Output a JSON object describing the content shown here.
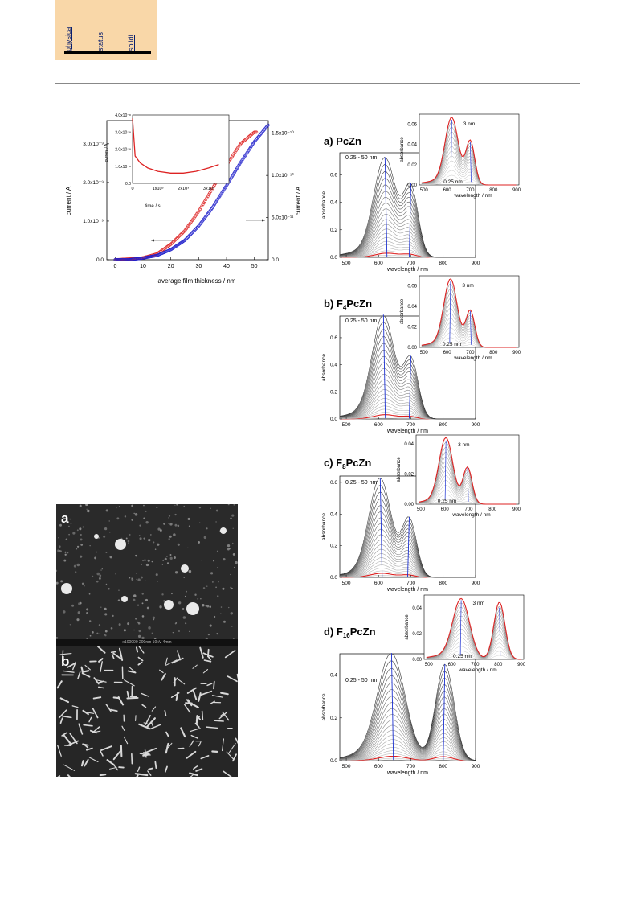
{
  "header": {
    "journal_words": [
      "physica",
      "status",
      "solidi"
    ]
  },
  "figure_left": {
    "x_label": "average film thickness / nm",
    "y_left_label": "current / A",
    "y_right_label": "current / A",
    "y_left_ticks": [
      "0.0",
      "1.0x10⁻⁹",
      "2.0x10⁻⁹",
      "3.0x10⁻⁹"
    ],
    "y_right_ticks": [
      "0.0",
      "5.0x10⁻¹¹",
      "1.0x10⁻¹⁰",
      "1.5x10⁻¹⁰"
    ],
    "x_ticks": [
      "0",
      "10",
      "20",
      "30",
      "40",
      "50"
    ],
    "inset": {
      "x_label": "time / s",
      "y_label": "current / A",
      "x_ticks": [
        "0",
        "1x10³",
        "2x10³",
        "3x10³"
      ],
      "y_ticks": [
        "0.0",
        "1.0x10⁻⁸",
        "2.0x10⁻⁸",
        "3.0x10⁻⁸",
        "4.0x10⁻⁸"
      ]
    }
  },
  "sem": {
    "label_a": "a",
    "label_b": "b",
    "scalebar_text": "x100000   200nm   10kV   4mm"
  },
  "panels": [
    {
      "label_prefix": "a) ",
      "label_core": "PcZn",
      "label_sub": "",
      "range_text": "0.25 - 50 nm",
      "inset_small": "0.25 nm",
      "inset_big": "3 nm"
    },
    {
      "label_prefix": "b) F",
      "label_core": "PcZn",
      "label_sub": "4",
      "range_text": "0.25 - 50 nm",
      "inset_small": "0.25 nm",
      "inset_big": "3 nm"
    },
    {
      "label_prefix": "c) F",
      "label_core": "PcZn",
      "label_sub": "8",
      "range_text": "0.25 - 50 nm",
      "inset_small": "0.25 nm",
      "inset_big": "3 nm"
    },
    {
      "label_prefix": "d) F",
      "label_core": "PcZn",
      "label_sub": "16",
      "range_text": "0.25 - 50 nm",
      "inset_small": "0.25 nm",
      "inset_big": "3 nm"
    }
  ],
  "spectra_axes": {
    "x_label": "wavelength / nm",
    "y_label": "absorbance"
  },
  "chart_data": [
    {
      "type": "scatter",
      "xlabel": "average film thickness / nm",
      "ylabel": "current / A",
      "xlim": [
        -3,
        55
      ],
      "series": [
        {
          "color": "#dd2222",
          "x": [
            0,
            5,
            10,
            15,
            20,
            25,
            30,
            35,
            40,
            45,
            50
          ],
          "values": [
            0,
            2e-11,
            5e-11,
            1.5e-10,
            4e-10,
            7.5e-10,
            1.25e-09,
            1.85e-09,
            2.45e-09,
            3e-09,
            3.3e-09
          ]
        },
        {
          "color": "#2222cc",
          "x": [
            0,
            5,
            10,
            15,
            20,
            25,
            30,
            35,
            40,
            45,
            50,
            55
          ],
          "values": [
            0,
            0,
            2e-12,
            5e-12,
            1.2e-11,
            2.3e-11,
            4e-11,
            6.2e-11,
            8.8e-11,
            1.15e-10,
            1.4e-10,
            1.6e-10
          ]
        }
      ]
    },
    {
      "type": "line",
      "title": "",
      "xlabel": "time / s",
      "ylabel": "current / A",
      "x": [
        0,
        100,
        300,
        600,
        1000,
        1500,
        2000,
        2500,
        3000,
        3400
      ],
      "values": [
        3.8e-08,
        1.6e-08,
        1.2e-08,
        9e-09,
        7e-09,
        6e-09,
        6e-09,
        7e-09,
        9e-09,
        1.1e-08
      ]
    },
    {
      "type": "line",
      "title": "PcZn",
      "xlabel": "wavelength / nm",
      "ylabel": "absorbance",
      "xlim": [
        480,
        900
      ],
      "ylim": [
        0,
        0.76
      ],
      "peaks_nm": [
        620,
        700
      ],
      "max_abs": 0.7,
      "ratio": 0.7
    },
    {
      "type": "line",
      "title": "F4PcZn",
      "xlabel": "wavelength / nm",
      "ylabel": "absorbance",
      "xlim": [
        480,
        900
      ],
      "ylim": [
        0,
        0.76
      ],
      "peaks_nm": [
        615,
        700
      ],
      "max_abs": 0.74,
      "ratio": 0.58
    },
    {
      "type": "line",
      "title": "F8PcZn",
      "xlabel": "wavelength / nm",
      "ylabel": "absorbance",
      "xlim": [
        480,
        900
      ],
      "ylim": [
        0,
        0.64
      ],
      "peaks_nm": [
        605,
        695
      ],
      "max_abs": 0.6,
      "ratio": 0.6
    },
    {
      "type": "line",
      "title": "F16PcZn",
      "xlabel": "wavelength / nm",
      "ylabel": "absorbance",
      "xlim": [
        480,
        900
      ],
      "ylim": [
        0,
        0.5
      ],
      "peaks_nm": [
        640,
        805
      ],
      "max_abs": 0.49,
      "ratio": 0.92
    }
  ]
}
